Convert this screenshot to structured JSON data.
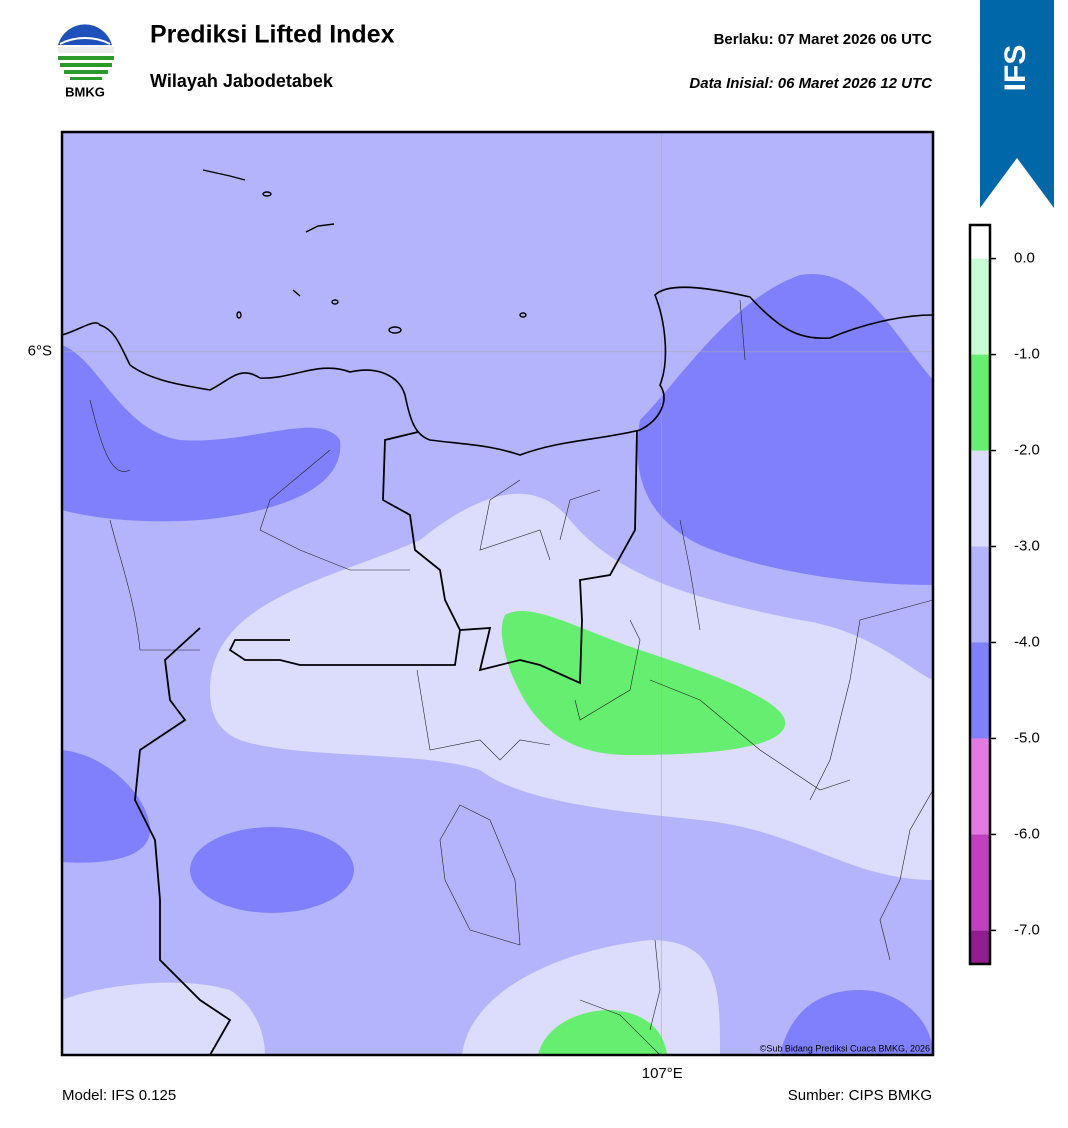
{
  "header": {
    "logo_text": "BMKG",
    "title": "Prediksi Lifted Index",
    "subtitle": "Wilayah Jabodetabek",
    "valid": "Berlaku:  07 Maret 2026 06 UTC",
    "init": "Data Inisial:  06 Maret 2026 12 UTC",
    "badge": "IFS"
  },
  "map": {
    "xlim": [
      105.5,
      107.68
    ],
    "ylim": [
      -7.76,
      -5.45
    ],
    "xticks": [
      {
        "value": 107,
        "label": "107°E"
      }
    ],
    "yticks": [
      {
        "value": -6,
        "label": "6°S"
      }
    ],
    "credit": "©Sub Bidang Prediksi Cuaca BMKG, 2026"
  },
  "colorbar": {
    "lim": [
      -7.35,
      0.35
    ],
    "levels": [
      -8,
      -7,
      -6,
      -5,
      -4,
      -3,
      -2,
      -1,
      0,
      1
    ],
    "colors": [
      "#901e90",
      "#c040c0",
      "#e27ae2",
      "#8080fc",
      "#b4b4fc",
      "#dcdcfc",
      "#66ee70",
      "#c8fcd4",
      "#ffffff"
    ],
    "ticks": [
      {
        "value": 0,
        "label": "0.0"
      },
      {
        "value": -1,
        "label": "-1.0"
      },
      {
        "value": -2,
        "label": "-2.0"
      },
      {
        "value": -3,
        "label": "-3.0"
      },
      {
        "value": -4,
        "label": "-4.0"
      },
      {
        "value": -5,
        "label": "-5.0"
      },
      {
        "value": -6,
        "label": "-6.0"
      },
      {
        "value": -7,
        "label": "-7.0"
      }
    ]
  },
  "footer": {
    "model": "Model: IFS 0.125",
    "source": "Sumber: CIPS BMKG"
  }
}
